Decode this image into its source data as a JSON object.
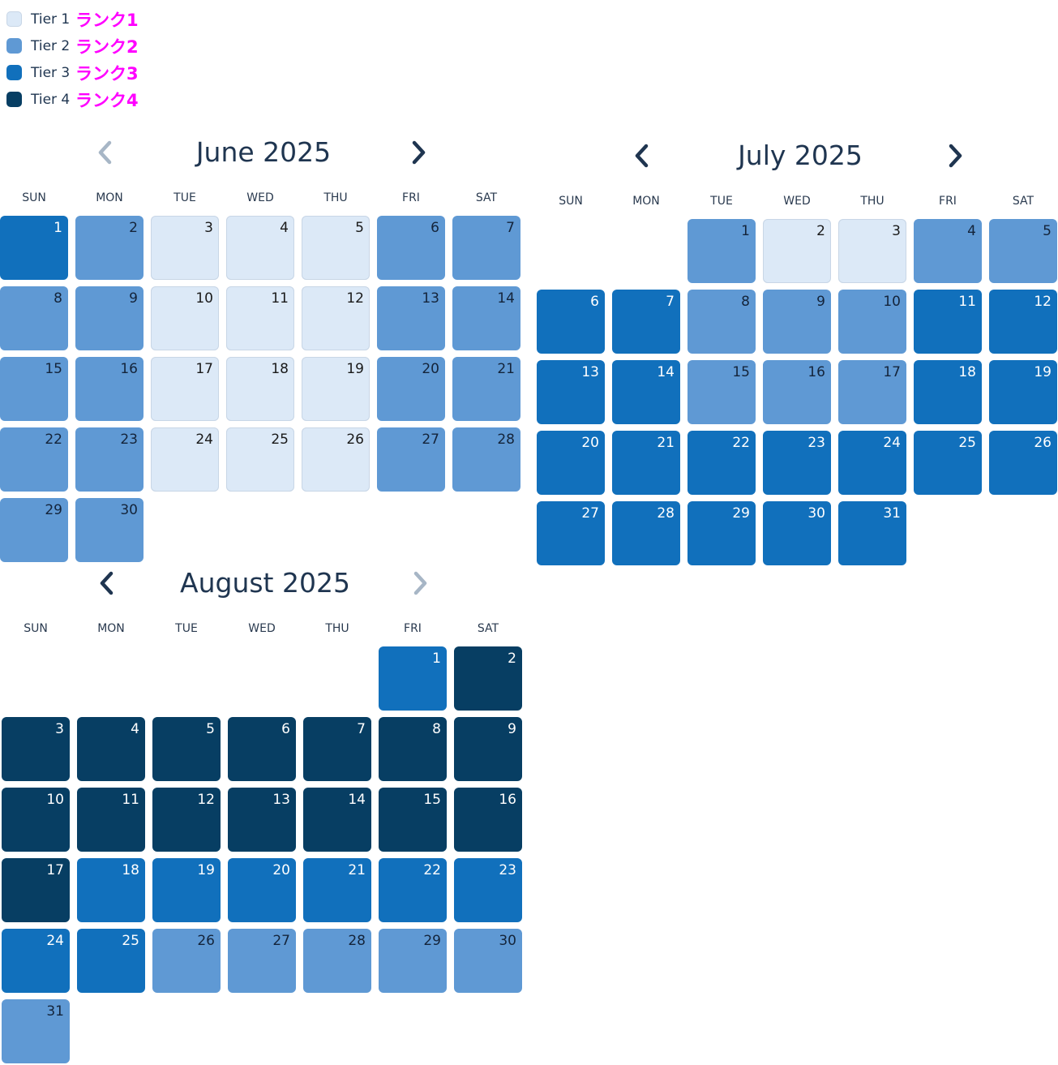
{
  "legend": [
    {
      "label": "Tier 1",
      "jp": "ランク1",
      "color": "#dce9f7"
    },
    {
      "label": "Tier 2",
      "jp": "ランク2",
      "color": "#5f99d4"
    },
    {
      "label": "Tier 3",
      "jp": "ランク3",
      "color": "#1170bc"
    },
    {
      "label": "Tier 4",
      "jp": "ランク4",
      "color": "#073e63"
    }
  ],
  "weekdays": [
    "SUN",
    "MON",
    "TUE",
    "WED",
    "THU",
    "FRI",
    "SAT"
  ],
  "months": [
    {
      "id": "june",
      "title": "June  2025",
      "prev_enabled": false,
      "next_enabled": true,
      "start_weekday": 0,
      "tiers": [
        3,
        2,
        1,
        1,
        1,
        2,
        2,
        2,
        2,
        1,
        1,
        1,
        2,
        2,
        2,
        2,
        1,
        1,
        1,
        2,
        2,
        2,
        2,
        1,
        1,
        1,
        2,
        2,
        2,
        2
      ]
    },
    {
      "id": "july",
      "title": "July  2025",
      "prev_enabled": true,
      "next_enabled": true,
      "start_weekday": 2,
      "tiers": [
        2,
        1,
        1,
        2,
        2,
        3,
        3,
        2,
        2,
        2,
        3,
        3,
        3,
        3,
        2,
        2,
        2,
        3,
        3,
        3,
        3,
        3,
        3,
        3,
        3,
        3,
        3,
        3,
        3,
        3,
        3
      ]
    },
    {
      "id": "august",
      "title": "August  2025",
      "prev_enabled": true,
      "next_enabled": false,
      "start_weekday": 5,
      "tiers": [
        3,
        4,
        4,
        4,
        4,
        4,
        4,
        4,
        4,
        4,
        4,
        4,
        4,
        4,
        4,
        4,
        4,
        3,
        3,
        3,
        3,
        3,
        3,
        3,
        3,
        2,
        2,
        2,
        2,
        2,
        2
      ]
    }
  ],
  "icons": {
    "prev": "chevron-left-icon",
    "next": "chevron-right-icon"
  },
  "nav_colors": {
    "enabled": "#1f3550",
    "disabled": "#a7b6c6"
  }
}
